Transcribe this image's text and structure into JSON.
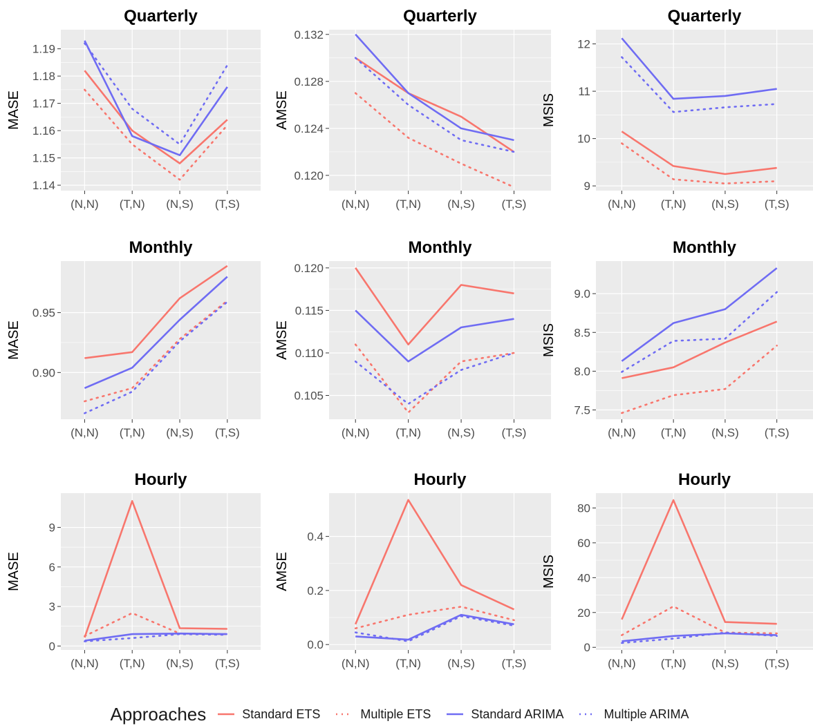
{
  "categories": [
    "(N,N)",
    "(T,N)",
    "(N,S)",
    "(T,S)"
  ],
  "colors": {
    "ets": "#F8766D",
    "arima": "#6F6CF3",
    "panel": "#EBEBEB",
    "grid": "#FFFFFF",
    "text": "#4D4D4D"
  },
  "legend": {
    "title": "Approaches",
    "items": [
      {
        "label": "Standard ETS",
        "color": "#F8766D",
        "dash": "solid"
      },
      {
        "label": "Multiple ETS",
        "color": "#F8766D",
        "dash": "dotted"
      },
      {
        "label": "Standard ARIMA",
        "color": "#6F6CF3",
        "dash": "solid"
      },
      {
        "label": "Multiple ARIMA",
        "color": "#6F6CF3",
        "dash": "dotted"
      }
    ]
  },
  "chart_data": [
    {
      "type": "line",
      "title": "Quarterly",
      "ylabel": "MASE",
      "ylim": [
        1.138,
        1.197
      ],
      "yticks": [
        1.14,
        1.15,
        1.16,
        1.17,
        1.18,
        1.19
      ],
      "ytick_labels": [
        "1.14",
        "1.15",
        "1.16",
        "1.17",
        "1.18",
        "1.19"
      ],
      "series": [
        {
          "name": "Standard ETS",
          "values": [
            1.182,
            1.16,
            1.148,
            1.164
          ]
        },
        {
          "name": "Multiple ETS",
          "values": [
            1.175,
            1.155,
            1.142,
            1.162
          ]
        },
        {
          "name": "Standard ARIMA",
          "values": [
            1.193,
            1.158,
            1.151,
            1.176
          ]
        },
        {
          "name": "Multiple ARIMA",
          "values": [
            1.192,
            1.168,
            1.155,
            1.184
          ]
        }
      ]
    },
    {
      "type": "line",
      "title": "Quarterly",
      "ylabel": "AMSE",
      "ylim": [
        0.1187,
        0.1324
      ],
      "yticks": [
        0.12,
        0.124,
        0.128,
        0.132
      ],
      "ytick_labels": [
        "0.120",
        "0.124",
        "0.128",
        "0.132"
      ],
      "series": [
        {
          "name": "Standard ETS",
          "values": [
            0.13,
            0.127,
            0.125,
            0.122
          ]
        },
        {
          "name": "Multiple ETS",
          "values": [
            0.127,
            0.1232,
            0.121,
            0.119
          ]
        },
        {
          "name": "Standard ARIMA",
          "values": [
            0.132,
            0.127,
            0.124,
            0.123
          ]
        },
        {
          "name": "Multiple ARIMA",
          "values": [
            0.13,
            0.126,
            0.123,
            0.122
          ]
        }
      ]
    },
    {
      "type": "line",
      "title": "Quarterly",
      "ylabel": "MSIS",
      "ylim": [
        8.9,
        12.3
      ],
      "yticks": [
        9,
        10,
        11,
        12
      ],
      "ytick_labels": [
        "9",
        "10",
        "11",
        "12"
      ],
      "series": [
        {
          "name": "Standard ETS",
          "values": [
            10.15,
            9.42,
            9.25,
            9.38
          ]
        },
        {
          "name": "Multiple ETS",
          "values": [
            9.9,
            9.14,
            9.05,
            9.1
          ]
        },
        {
          "name": "Standard ARIMA",
          "values": [
            12.12,
            10.84,
            10.9,
            11.05
          ]
        },
        {
          "name": "Multiple ARIMA",
          "values": [
            11.72,
            10.56,
            10.66,
            10.73
          ]
        }
      ]
    },
    {
      "type": "line",
      "title": "Monthly",
      "ylabel": "MASE",
      "ylim": [
        0.861,
        0.993
      ],
      "yticks": [
        0.9,
        0.95
      ],
      "ytick_labels": [
        "0.90",
        "0.95"
      ],
      "series": [
        {
          "name": "Standard ETS",
          "values": [
            0.912,
            0.917,
            0.962,
            0.989
          ]
        },
        {
          "name": "Multiple ETS",
          "values": [
            0.876,
            0.887,
            0.928,
            0.96
          ]
        },
        {
          "name": "Standard ARIMA",
          "values": [
            0.887,
            0.904,
            0.944,
            0.98
          ]
        },
        {
          "name": "Multiple ARIMA",
          "values": [
            0.866,
            0.884,
            0.926,
            0.959
          ]
        }
      ]
    },
    {
      "type": "line",
      "title": "Monthly",
      "ylabel": "AMSE",
      "ylim": [
        0.1022,
        0.1208
      ],
      "yticks": [
        0.105,
        0.11,
        0.115,
        0.12
      ],
      "ytick_labels": [
        "0.105",
        "0.110",
        "0.115",
        "0.120"
      ],
      "series": [
        {
          "name": "Standard ETS",
          "values": [
            0.12,
            0.111,
            0.118,
            0.117
          ]
        },
        {
          "name": "Multiple ETS",
          "values": [
            0.111,
            0.103,
            0.109,
            0.11
          ]
        },
        {
          "name": "Standard ARIMA",
          "values": [
            0.115,
            0.109,
            0.113,
            0.114
          ]
        },
        {
          "name": "Multiple ARIMA",
          "values": [
            0.109,
            0.104,
            0.108,
            0.11
          ]
        }
      ]
    },
    {
      "type": "line",
      "title": "Monthly",
      "ylabel": "MSIS",
      "ylim": [
        7.38,
        9.42
      ],
      "yticks": [
        7.5,
        8.0,
        8.5,
        9.0
      ],
      "ytick_labels": [
        "7.5",
        "8.0",
        "8.5",
        "9.0"
      ],
      "series": [
        {
          "name": "Standard ETS",
          "values": [
            7.91,
            8.05,
            8.37,
            8.64
          ]
        },
        {
          "name": "Multiple ETS",
          "values": [
            7.46,
            7.69,
            7.77,
            8.33
          ]
        },
        {
          "name": "Standard ARIMA",
          "values": [
            8.13,
            8.62,
            8.8,
            9.33
          ]
        },
        {
          "name": "Multiple ARIMA",
          "values": [
            7.99,
            8.39,
            8.42,
            9.02
          ]
        }
      ]
    },
    {
      "type": "line",
      "title": "Hourly",
      "ylabel": "MASE",
      "ylim": [
        -0.3,
        11.6
      ],
      "yticks": [
        0,
        3,
        6,
        9
      ],
      "ytick_labels": [
        "0",
        "3",
        "6",
        "9"
      ],
      "series": [
        {
          "name": "Standard ETS",
          "values": [
            0.65,
            11.0,
            1.35,
            1.3
          ]
        },
        {
          "name": "Multiple ETS",
          "values": [
            0.75,
            2.5,
            0.95,
            0.9
          ]
        },
        {
          "name": "Standard ARIMA",
          "values": [
            0.4,
            0.9,
            0.95,
            0.9
          ]
        },
        {
          "name": "Multiple ARIMA",
          "values": [
            0.35,
            0.6,
            0.9,
            0.85
          ]
        }
      ]
    },
    {
      "type": "line",
      "title": "Hourly",
      "ylabel": "AMSE",
      "ylim": [
        -0.02,
        0.56
      ],
      "yticks": [
        0.0,
        0.2,
        0.4
      ],
      "ytick_labels": [
        "0.0",
        "0.2",
        "0.4"
      ],
      "series": [
        {
          "name": "Standard ETS",
          "values": [
            0.075,
            0.535,
            0.22,
            0.13
          ]
        },
        {
          "name": "Multiple ETS",
          "values": [
            0.06,
            0.11,
            0.14,
            0.09
          ]
        },
        {
          "name": "Standard ARIMA",
          "values": [
            0.03,
            0.018,
            0.11,
            0.075
          ]
        },
        {
          "name": "Multiple ARIMA",
          "values": [
            0.045,
            0.012,
            0.105,
            0.07
          ]
        }
      ]
    },
    {
      "type": "line",
      "title": "Hourly",
      "ylabel": "MSIS",
      "ylim": [
        -1.5,
        88.5
      ],
      "yticks": [
        0,
        20,
        40,
        60,
        80
      ],
      "ytick_labels": [
        "0",
        "20",
        "40",
        "60",
        "80"
      ],
      "series": [
        {
          "name": "Standard ETS",
          "values": [
            16.0,
            84.5,
            14.5,
            13.5
          ]
        },
        {
          "name": "Multiple ETS",
          "values": [
            7.0,
            23.5,
            8.5,
            8.0
          ]
        },
        {
          "name": "Standard ARIMA",
          "values": [
            3.5,
            6.5,
            8.0,
            7.0
          ]
        },
        {
          "name": "Multiple ARIMA",
          "values": [
            2.5,
            5.0,
            8.5,
            6.5
          ]
        }
      ]
    }
  ]
}
